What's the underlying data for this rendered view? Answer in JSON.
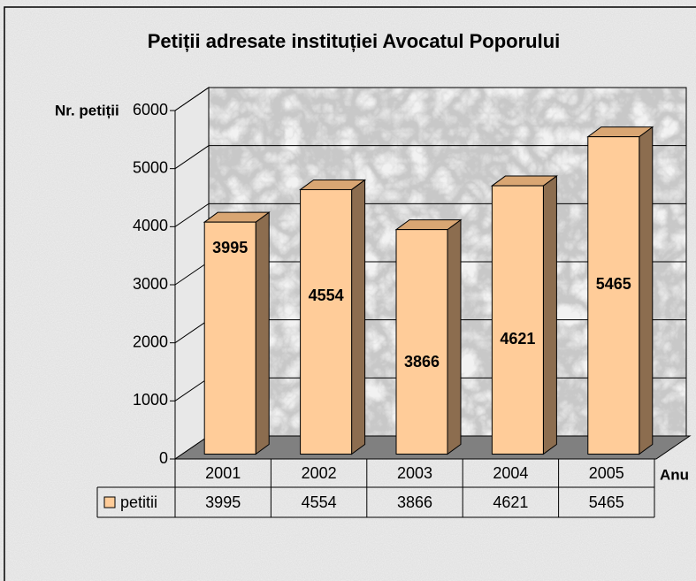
{
  "chart_data": {
    "type": "bar3d",
    "title": "Petiții adresate instituției Avocatul Poporului",
    "y_label": "Nr. petiții",
    "x_label": "Anu",
    "categories": [
      "2001",
      "2002",
      "2003",
      "2004",
      "2005"
    ],
    "series": [
      {
        "name": "petitii",
        "color": "#ffcc99",
        "values": [
          3995,
          4554,
          3866,
          4621,
          5465
        ]
      }
    ],
    "ylim": [
      0,
      6000
    ],
    "yticks": [
      0,
      1000,
      2000,
      3000,
      4000,
      5000,
      6000
    ],
    "grid": true,
    "data_table": true
  }
}
